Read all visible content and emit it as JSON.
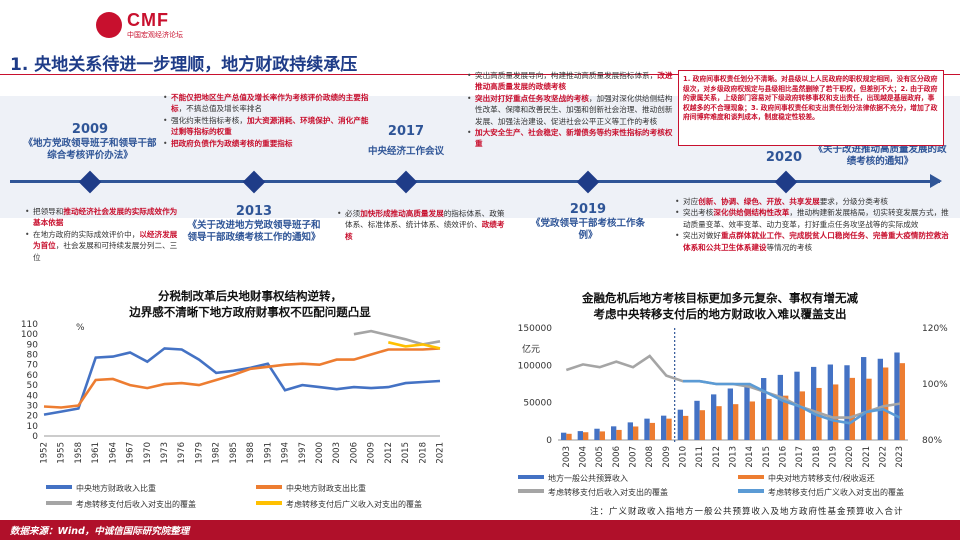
{
  "header": {
    "brand": "CMF",
    "brand_sub": "中国宏观经济论坛"
  },
  "title": "1. 央地关系待进一步理顺，地方财政持续承压",
  "timeline": {
    "events": [
      {
        "year": "2009",
        "doc": "《地方党政领导班子和领导干部综合考核评价办法》"
      },
      {
        "year": "2013",
        "doc": "《关于改进地方党政领导班子和领导干部政绩考核工作的通知》"
      },
      {
        "year": "2017",
        "doc": "中央经济工作会议"
      },
      {
        "year": "2019",
        "doc": "《党政领导干部考核工作条例》"
      },
      {
        "year": "2020",
        "doc": "《关于改进推动高质量发展的政绩考核的通知》"
      }
    ],
    "b2009": [
      {
        "segs": [
          {
            "t": "把领导和",
            "r": false
          },
          {
            "t": "推动经济社会发展的实际成效作为基本依据",
            "r": true
          }
        ]
      },
      {
        "segs": [
          {
            "t": "在地方政府的实际成效评价中，",
            "r": false
          },
          {
            "t": "以经济发展为首位",
            "r": true
          },
          {
            "t": "，社会发展和可持续发展分列二、三位",
            "r": false
          }
        ]
      }
    ],
    "b2013": [
      {
        "segs": [
          {
            "t": "不能仅把地区生产总值及增长率作为考核评价政绩的主要指标",
            "r": true
          },
          {
            "t": "，不搞总值及增长率排名",
            "r": false
          }
        ]
      },
      {
        "segs": [
          {
            "t": "强化约束性指标考核，",
            "r": false
          },
          {
            "t": "加大资源消耗、环境保护、消化产能过剩等指标的权重",
            "r": true
          }
        ]
      },
      {
        "segs": [
          {
            "t": "把政府负债作为政绩考核的重要指标",
            "r": true
          }
        ]
      }
    ],
    "b2017": [
      {
        "segs": [
          {
            "t": "必须",
            "r": false
          },
          {
            "t": "加快形成推动高质量发展",
            "r": true
          },
          {
            "t": "的指标体系、政策体系、标准体系、统计体系、绩效评价、",
            "r": false
          },
          {
            "t": "政绩考核",
            "r": true
          }
        ]
      }
    ],
    "b2019": [
      {
        "segs": [
          {
            "t": "突出高质量发展导向，构建推动高质量发展指标体系，",
            "r": false
          },
          {
            "t": "改进推动高质量发展的政绩考核",
            "r": true
          }
        ]
      },
      {
        "segs": [
          {
            "t": "突出对打好重点任务攻坚战的考核",
            "r": true
          },
          {
            "t": "，加强对深化供给侧结构性改革、保障和改善民生、加强和创新社会治理、推动创新发展、加强法治建设、促进社会公平正义等工作的考核",
            "r": false
          }
        ]
      },
      {
        "segs": [
          {
            "t": "加大安全生产、社会稳定、新增债务等约束性指标的考核权重",
            "r": true
          }
        ]
      }
    ],
    "b2020": [
      {
        "segs": [
          {
            "t": "对应",
            "r": false
          },
          {
            "t": "创新、协调、绿色、开放、共享发展",
            "r": true
          },
          {
            "t": "要求，分级分类考核",
            "r": false
          }
        ]
      },
      {
        "segs": [
          {
            "t": "突出考核",
            "r": false
          },
          {
            "t": "深化供给侧结构性改革",
            "r": true
          },
          {
            "t": "，推动构建新发展格局，切实转变发展方式，推动质量变革、效率变革、动力变革，打好重点任务攻坚战等的实际成效",
            "r": false
          }
        ]
      },
      {
        "segs": [
          {
            "t": "突出对做好",
            "r": false
          },
          {
            "t": "重点群体就业工作、完成脱贫人口稳岗任务、完善重大疫情防控救治体系和公共卫生体系建设",
            "r": true
          },
          {
            "t": "等情况的考核",
            "r": false
          }
        ]
      }
    ],
    "note_box": "1. 政府间事权责任划分不清晰。对县级以上人民政府的职权规定相同，没有区分政府级次，对乡级政府权规定与县级相比虽然删除了若干职权，但差别不大；2. 由于政府的隶属关系，上级部门容易对下级政府转移事权和支出责任，出现越是基层政府，事权越多的不合理现象；3. 政府间事权责任和支出责任划分法律依据不充分，增加了政府间博弈难度和谈判成本，制度稳定性较差。"
  },
  "left_chart": {
    "title_line1": "分税制改革后央地财事权结构逆转，",
    "title_line2": "边界感不清晰下地方政府财事权不匹配问题凸显",
    "unit": "%"
  },
  "right_chart": {
    "title_line1": "金融危机后地方考核目标更加多元复杂、事权有增无减",
    "title_line2": "考虑中央转移支付后的地方财政收入难以覆盖支出",
    "unit": "亿元"
  },
  "chart_data": [
    {
      "type": "line",
      "title": "分税制改革后央地财事权结构逆转，边界感不清晰下地方政府财事权不匹配问题凸显",
      "ylabel": "%",
      "ylim": [
        0,
        110
      ],
      "yticks": [
        0,
        10,
        20,
        30,
        40,
        50,
        60,
        70,
        80,
        90,
        100,
        110
      ],
      "x": [
        1952,
        1955,
        1958,
        1961,
        1964,
        1967,
        1970,
        1973,
        1976,
        1979,
        1982,
        1985,
        1988,
        1991,
        1994,
        1997,
        2000,
        2003,
        2006,
        2009,
        2012,
        2015,
        2018,
        2021
      ],
      "xticks": [
        "1952",
        "1955",
        "1958",
        "1961",
        "1964",
        "1967",
        "1970",
        "1973",
        "1976",
        "1979",
        "1982",
        "1985",
        "1988",
        "1991",
        "1994",
        "1997",
        "2000",
        "2003",
        "2006",
        "2009",
        "2012",
        "2015",
        "2018",
        "2021"
      ],
      "series": [
        {
          "name": "中央地方财政收入比重",
          "color": "#4472c4",
          "values": [
            21,
            24,
            27,
            77,
            78,
            82,
            73,
            86,
            85,
            75,
            62,
            64,
            67,
            71,
            45,
            50,
            48,
            46,
            48,
            47,
            48,
            52,
            53,
            54
          ]
        },
        {
          "name": "中央地方财政支出比重",
          "color": "#ed7d31",
          "values": [
            29,
            28,
            30,
            55,
            56,
            50,
            47,
            51,
            52,
            50,
            55,
            60,
            66,
            68,
            70,
            71,
            70,
            75,
            75,
            80,
            85,
            85,
            85,
            86
          ]
        },
        {
          "name": "考虑转移支付后收入对支出的覆盖",
          "color": "#a5a5a5",
          "values": [
            null,
            null,
            null,
            null,
            null,
            null,
            null,
            null,
            null,
            null,
            null,
            null,
            null,
            null,
            null,
            null,
            null,
            null,
            100,
            103,
            99,
            95,
            90,
            93
          ]
        },
        {
          "name": "考虑转移支付后广义收入对支出的覆盖",
          "color": "#ffc000",
          "values": [
            null,
            null,
            null,
            null,
            null,
            null,
            null,
            null,
            null,
            null,
            null,
            null,
            null,
            null,
            null,
            null,
            null,
            null,
            null,
            null,
            92,
            88,
            90,
            86
          ]
        }
      ]
    },
    {
      "type": "bar",
      "title": "金融危机后地方考核目标更加多元复杂、事权有增无减；考虑中央转移支付后的地方财政收入难以覆盖支出",
      "ylabel": "亿元",
      "ylim": [
        0,
        150000
      ],
      "yticks": [
        "0",
        "50000",
        "100000",
        "150000"
      ],
      "y2lim": [
        80,
        120
      ],
      "y2ticks": [
        "80%",
        "100%",
        "120%"
      ],
      "categories": [
        "2003",
        "2004",
        "2005",
        "2006",
        "2007",
        "2008",
        "2009",
        "2010",
        "2011",
        "2012",
        "2013",
        "2014",
        "2015",
        "2016",
        "2017",
        "2018",
        "2019",
        "2020",
        "2021",
        "2022",
        "2023"
      ],
      "series": [
        {
          "name": "地方一般公共预算收入",
          "color": "#4472c4",
          "type": "bar",
          "values": [
            9800,
            11900,
            15100,
            18300,
            23600,
            28600,
            32600,
            40600,
            52500,
            61100,
            69000,
            75900,
            83000,
            87200,
            91500,
            97900,
            101100,
            100100,
            111100,
            108800,
            117200
          ]
        },
        {
          "name": "中央对地方转移支付/税收返还",
          "color": "#ed7d31",
          "type": "bar",
          "values": [
            8300,
            10400,
            11500,
            13500,
            18100,
            22900,
            28600,
            32300,
            39900,
            45300,
            48000,
            51600,
            55100,
            59400,
            65100,
            69700,
            74400,
            83200,
            82100,
            97100,
            102900
          ]
        },
        {
          "name": "考虑转移支付后收入对支出的覆盖",
          "color": "#a5a5a5",
          "type": "line",
          "axis": "right",
          "values": [
            105,
            107,
            106,
            108,
            106,
            110,
            103,
            101,
            101,
            100,
            100,
            99,
            97,
            95,
            92,
            90,
            88,
            88,
            90,
            92,
            93
          ]
        },
        {
          "name": "考虑转移支付后广义收入对支出的覆盖",
          "color": "#5b9bd5",
          "type": "line",
          "axis": "right",
          "values": [
            null,
            null,
            null,
            null,
            null,
            null,
            null,
            101,
            101,
            100,
            100,
            100,
            97,
            94,
            92,
            89,
            87,
            86,
            90,
            91,
            88
          ]
        }
      ],
      "annotation": "2009 dashed line"
    }
  ],
  "note": "注：广义财政收入指地方一般公共预算收入及地方政府性基金预算收入合计",
  "source": "数据来源：Wind，中诚信国际研究院整理"
}
